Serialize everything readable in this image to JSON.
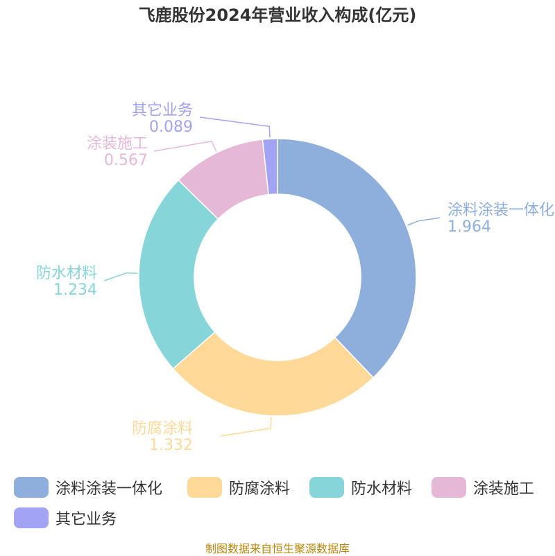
{
  "chart_data": {
    "type": "pie",
    "title": "飞鹿股份2024年营业收入构成(亿元)",
    "donut": true,
    "categories": [
      "涂料涂装一体化",
      "防腐涂料",
      "防水材料",
      "涂装施工",
      "其它业务"
    ],
    "values": [
      1.964,
      1.332,
      1.234,
      0.567,
      0.089
    ],
    "value_labels": [
      "1.964",
      "1.332",
      "1.234",
      "0.567",
      "0.089"
    ],
    "colors": [
      "#8eaedb",
      "#ffd998",
      "#86d5d8",
      "#e6b8d8",
      "#a2a3f3"
    ],
    "legend_position": "bottom"
  },
  "source": "制图数据来自恒生聚源数据库"
}
